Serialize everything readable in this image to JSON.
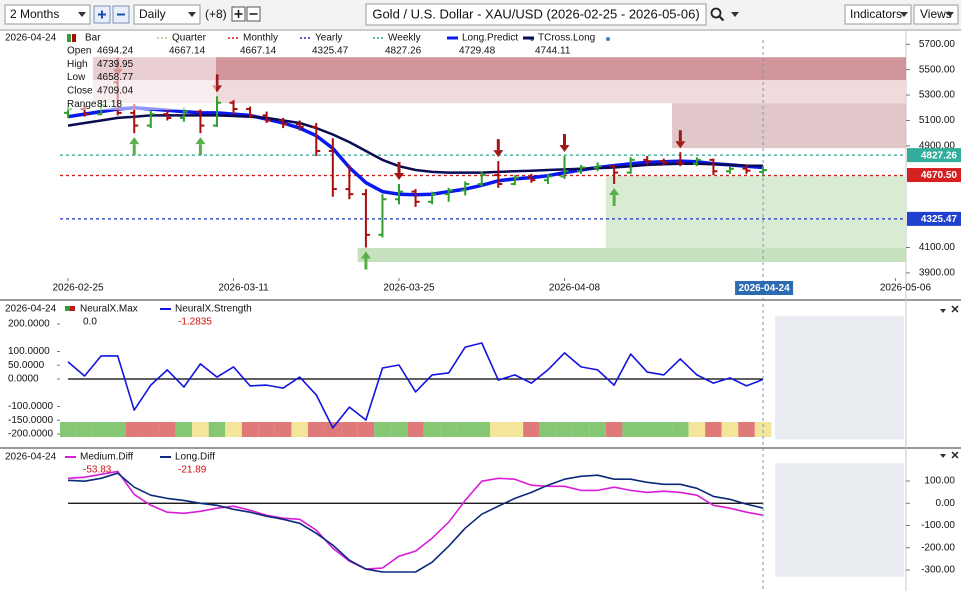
{
  "toolbar": {
    "range": "2 Months",
    "interval": "Daily",
    "offset": "(+8)",
    "title": "Gold / U.S. Dollar - XAU/USD (2026-02-25 - 2026-05-06)",
    "indicators": "Indicators",
    "views": "Views"
  },
  "chart_data": [
    {
      "type": "candlestick",
      "date_label": "2026-04-24",
      "x": [
        "2026-02-25",
        "2026-02-26",
        "2026-02-27",
        "2026-03-02",
        "2026-03-03",
        "2026-03-04",
        "2026-03-05",
        "2026-03-06",
        "2026-03-09",
        "2026-03-10",
        "2026-03-11",
        "2026-03-12",
        "2026-03-13",
        "2026-03-16",
        "2026-03-17",
        "2026-03-18",
        "2026-03-19",
        "2026-03-20",
        "2026-03-23",
        "2026-03-24",
        "2026-03-25",
        "2026-03-26",
        "2026-03-27",
        "2026-03-30",
        "2026-03-31",
        "2026-04-01",
        "2026-04-02",
        "2026-04-03",
        "2026-04-06",
        "2026-04-07",
        "2026-04-08",
        "2026-04-09",
        "2026-04-10",
        "2026-04-13",
        "2026-04-14",
        "2026-04-15",
        "2026-04-16",
        "2026-04-17",
        "2026-04-20",
        "2026-04-21",
        "2026-04-22",
        "2026-04-23",
        "2026-04-24"
      ],
      "open": [
        5160,
        5190,
        5150,
        5400,
        5160,
        5060,
        5150,
        5120,
        5170,
        5060,
        5240,
        5190,
        5140,
        5100,
        5070,
        5050,
        4860,
        4560,
        4520,
        4200,
        4480,
        4540,
        4460,
        4520,
        4550,
        4600,
        4670,
        4600,
        4650,
        4630,
        4660,
        4700,
        4730,
        4740,
        4690,
        4790,
        4780,
        4770,
        4760,
        4790,
        4700,
        4720,
        4694.24
      ],
      "high": [
        5210,
        5220,
        5260,
        5420,
        5230,
        5180,
        5190,
        5200,
        5190,
        5290,
        5260,
        5210,
        5170,
        5120,
        5100,
        5080,
        4960,
        4750,
        4560,
        4520,
        4600,
        4560,
        4540,
        4570,
        4620,
        4700,
        4780,
        4670,
        4680,
        4680,
        4820,
        4750,
        4770,
        4750,
        4810,
        4820,
        4800,
        4850,
        4810,
        4800,
        4740,
        4750,
        4739.95
      ],
      "low": [
        5120,
        5130,
        5140,
        5140,
        5000,
        5040,
        5100,
        5090,
        5000,
        5050,
        5150,
        5120,
        5080,
        5040,
        5020,
        4820,
        4500,
        4480,
        4100,
        4180,
        4440,
        4420,
        4440,
        4460,
        4510,
        4580,
        4570,
        4590,
        4610,
        4600,
        4640,
        4680,
        4700,
        4600,
        4680,
        4750,
        4750,
        4740,
        4740,
        4670,
        4680,
        4680,
        4658.77
      ],
      "close": [
        5190,
        5150,
        5220,
        5160,
        5060,
        5150,
        5120,
        5170,
        5060,
        5240,
        5190,
        5140,
        5100,
        5070,
        5050,
        4860,
        4560,
        4520,
        4200,
        4480,
        4540,
        4460,
        4520,
        4550,
        4600,
        4670,
        4600,
        4650,
        4630,
        4660,
        4700,
        4730,
        4740,
        4690,
        4790,
        4780,
        4770,
        4760,
        4790,
        4700,
        4720,
        4705,
        4709.04
      ],
      "up_color": "#2e9e2e",
      "down_color": "#a80d0d",
      "ohlc_legend": {
        "name": "Bar",
        "labels": [
          "Open",
          "High",
          "Low",
          "Close",
          "Range"
        ],
        "values": [
          4694.24,
          4739.95,
          4658.77,
          4709.04,
          81.18
        ]
      },
      "levels": [
        {
          "name": "Quarter",
          "color": "#d2b079",
          "value": 4667.14
        },
        {
          "name": "Monthly",
          "color": "#d01818",
          "value": 4667.14
        },
        {
          "name": "Yearly",
          "color": "#1a2fc8",
          "value": 4325.47
        },
        {
          "name": "Weekly",
          "color": "#2aa38f",
          "value": 4827.26
        }
      ],
      "lines": [
        {
          "name": "Long.Predict",
          "color": "#0a18f0",
          "width": 3.5,
          "current": 4729.48,
          "values": [
            5130,
            5150,
            5170,
            5190,
            5200,
            5190,
            5180,
            5170,
            5160,
            5160,
            5150,
            5140,
            5110,
            5080,
            5040,
            4980,
            4880,
            4730,
            4610,
            4540,
            4520,
            4515,
            4520,
            4540,
            4560,
            4590,
            4625,
            4640,
            4650,
            4665,
            4690,
            4710,
            4730,
            4745,
            4760,
            4770,
            4775,
            4780,
            4775,
            4760,
            4750,
            4740,
            4729.48
          ]
        },
        {
          "name": "TCross.Long",
          "color": "#0b0b55",
          "width": 2.5,
          "current": 4744.11,
          "values": [
            5060,
            5080,
            5100,
            5120,
            5130,
            5140,
            5140,
            5140,
            5140,
            5140,
            5135,
            5130,
            5120,
            5100,
            5080,
            5040,
            4990,
            4930,
            4860,
            4790,
            4740,
            4710,
            4695,
            4690,
            4690,
            4690,
            4695,
            4700,
            4705,
            4710,
            4715,
            4720,
            4725,
            4730,
            4740,
            4750,
            4755,
            4760,
            4760,
            4755,
            4750,
            4745,
            4744.11
          ]
        }
      ],
      "zones": [
        {
          "x": [
            "2026-02-27",
            "2026-05-07"
          ],
          "y": [
            5417,
            5598
          ],
          "color": "#c98389"
        },
        {
          "x": [
            "2026-02-27",
            "2026-05-07"
          ],
          "y": [
            5236,
            5417
          ],
          "color": "#efd3d6"
        },
        {
          "x": [
            "2026-04-17",
            "2026-05-07"
          ],
          "y": [
            4882,
            5236
          ],
          "color": "#dcbcc1"
        },
        {
          "x": [
            "2026-04-13",
            "2026-05-07"
          ],
          "y": [
            4096,
            4662
          ],
          "color": "#d3e8cc"
        },
        {
          "x": [
            "2026-03-23",
            "2026-05-07"
          ],
          "y": [
            3986,
            4096
          ],
          "color": "#bcdcb2"
        }
      ],
      "signals": {
        "sell": [
          "2026-03-02",
          "2026-03-10",
          "2026-03-25",
          "2026-04-02",
          "2026-04-08",
          "2026-04-17"
        ],
        "buy": [
          "2026-03-03",
          "2026-03-09",
          "2026-03-23",
          "2026-04-13"
        ],
        "sell_color": "#a01818",
        "buy_color": "#55b04a"
      },
      "price_tags": [
        {
          "value": 4827.26,
          "color": "#2fae9b"
        },
        {
          "value": 4670.5,
          "label": "4670.50",
          "color": "#d42020"
        },
        {
          "value": 4325.47,
          "color": "#2040d0"
        }
      ],
      "xlim": [
        "2026-02-24",
        "2026-05-07"
      ],
      "xticks": [
        "2026-02-25",
        "2026-03-11",
        "2026-03-25",
        "2026-04-08",
        "2026-05-06"
      ],
      "cursor": "2026-04-24",
      "ylim": [
        3860,
        5765
      ],
      "yticks": [
        {
          "value": 3900,
          "label": "3900.00"
        },
        {
          "value": 4100,
          "label": "4100.00"
        },
        {
          "value": 4900,
          "label": "4900.00"
        },
        {
          "value": 5100,
          "label": "5100.00"
        },
        {
          "value": 5300,
          "label": "5300.00"
        },
        {
          "value": 5500,
          "label": "5500.00"
        },
        {
          "value": 5700,
          "label": "5700.00"
        }
      ]
    },
    {
      "type": "line",
      "date_label": "2026-04-24",
      "series": [
        {
          "name": "NeuralX.Max",
          "current": "0.0",
          "strip": [
            "#86c774",
            "#86c774",
            "#86c774",
            "#86c774",
            "#e07a7a",
            "#e07a7a",
            "#e07a7a",
            "#86c774",
            "#f3e69a",
            "#86c774",
            "#f3e69a",
            "#e07a7a",
            "#e07a7a",
            "#e07a7a",
            "#f3e69a",
            "#e07a7a",
            "#e07a7a",
            "#e07a7a",
            "#e07a7a",
            "#86c774",
            "#86c774",
            "#e07a7a",
            "#86c774",
            "#86c774",
            "#86c774",
            "#86c774",
            "#f3e69a",
            "#f3e69a",
            "#e07a7a",
            "#86c774",
            "#86c774",
            "#86c774",
            "#86c774",
            "#e07a7a",
            "#86c774",
            "#86c774",
            "#86c774",
            "#86c774",
            "#f3e69a",
            "#e07a7a",
            "#f3e69a",
            "#e07a7a",
            "#f3e69a"
          ]
        },
        {
          "name": "NeuralX.Strength",
          "color": "#1414e0",
          "current": -1.2835,
          "values": [
            62,
            11,
            84,
            84,
            -113,
            -22,
            33,
            -29,
            55,
            7,
            44,
            -25,
            -22,
            -33,
            7,
            -58,
            -178,
            -102,
            -149,
            40,
            51,
            -47,
            15,
            22,
            116,
            131,
            -4,
            15,
            -15,
            33,
            95,
            44,
            33,
            -22,
            91,
            25,
            15,
            73,
            15,
            -15,
            4,
            -25,
            -1.2835
          ]
        }
      ],
      "hline": 0,
      "ylim": [
        -220,
        230
      ],
      "yticks": [
        {
          "value": 200,
          "label": "200.0000"
        },
        {
          "value": 100,
          "label": "100.0000"
        },
        {
          "value": 50,
          "label": "50.0000"
        },
        {
          "value": 0,
          "label": "0.0000"
        },
        {
          "value": -100,
          "label": "-100.0000"
        },
        {
          "value": -150,
          "label": "-150.0000"
        },
        {
          "value": -200,
          "label": "-200.0000"
        }
      ]
    },
    {
      "type": "line",
      "date_label": "2026-04-24",
      "series": [
        {
          "name": "Medium.Diff",
          "color": "#d81ed8",
          "current": -53.83,
          "values": [
            112,
            117,
            130,
            143,
            40,
            -9,
            -40,
            -45,
            -36,
            -22,
            -13,
            -31,
            -54,
            -67,
            -72,
            -121,
            -202,
            -260,
            -296,
            -291,
            -238,
            -215,
            -157,
            -85,
            13,
            99,
            112,
            108,
            81,
            76,
            76,
            58,
            58,
            72,
            58,
            49,
            54,
            49,
            36,
            -9,
            -22,
            -40,
            -53.83
          ]
        },
        {
          "name": "Long.Diff",
          "color": "#0c2a7a",
          "current": -21.89,
          "values": [
            103,
            99,
            112,
            135,
            72,
            36,
            22,
            13,
            0,
            -9,
            -27,
            -40,
            -58,
            -72,
            -90,
            -135,
            -188,
            -256,
            -296,
            -309,
            -309,
            -309,
            -265,
            -193,
            -112,
            -49,
            -13,
            22,
            49,
            81,
            108,
            121,
            126,
            108,
            108,
            94,
            85,
            85,
            67,
            31,
            18,
            -4,
            -21.89
          ]
        }
      ],
      "hline": 0,
      "ylim": [
        -330,
        180
      ],
      "yticks": [
        {
          "value": 100,
          "label": "100.00"
        },
        {
          "value": 0,
          "label": "0.00"
        },
        {
          "value": -100,
          "label": "-100.00"
        },
        {
          "value": -200,
          "label": "-200.00"
        },
        {
          "value": -300,
          "label": "-300.00"
        }
      ]
    }
  ]
}
